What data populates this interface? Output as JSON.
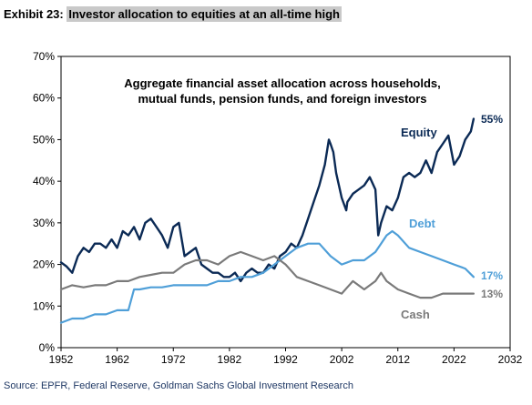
{
  "header": {
    "exhibit_label": "Exhibit 23:",
    "exhibit_title": "Investor allocation to equities at an all-time high"
  },
  "source": "Source: EPFR, Federal Reserve, Goldman Sachs Global Investment Research",
  "chart_data": {
    "type": "line",
    "title": "Aggregate financial asset allocation across households, mutual funds, pension funds, and foreign investors",
    "title_lines": [
      "Aggregate financial asset allocation across households,",
      "mutual funds, pension funds, and foreign investors"
    ],
    "xlim": [
      1952,
      2032
    ],
    "ylim": [
      0,
      70
    ],
    "x_ticks": [
      1952,
      1962,
      1972,
      1982,
      1992,
      2002,
      2012,
      2022,
      2032
    ],
    "y_ticks": [
      0,
      10,
      20,
      30,
      40,
      50,
      60,
      70
    ],
    "y_tick_labels": [
      "0%",
      "10%",
      "20%",
      "30%",
      "40%",
      "50%",
      "60%",
      "70%"
    ],
    "grid": false,
    "colors": {
      "equity": "#0b2a55",
      "debt": "#4f9fd8",
      "cash": "#7a7a7a"
    },
    "series": [
      {
        "name": "Equity",
        "end_label": "55%",
        "x": [
          1952,
          1953,
          1954,
          1955,
          1956,
          1957,
          1958,
          1959,
          1960,
          1961,
          1962,
          1963,
          1964,
          1965,
          1966,
          1967,
          1968,
          1969,
          1970,
          1971,
          1972,
          1973,
          1974,
          1975,
          1976,
          1977,
          1978,
          1979,
          1980,
          1981,
          1982,
          1983,
          1984,
          1985,
          1986,
          1987,
          1988,
          1989,
          1990,
          1991,
          1992,
          1993,
          1994,
          1995,
          1996,
          1997,
          1998,
          1999,
          1999.7,
          2000,
          2000.5,
          2001,
          2002,
          2002.8,
          2003,
          2004,
          2005,
          2006,
          2007,
          2008,
          2008.5,
          2009,
          2010,
          2011,
          2012,
          2013,
          2014,
          2015,
          2016,
          2017,
          2018,
          2019,
          2020,
          2021,
          2022,
          2023,
          2024,
          2025,
          2025.5
        ],
        "values": [
          20.5,
          19.5,
          18,
          22,
          24,
          23,
          25,
          25,
          24,
          26,
          24,
          28,
          27,
          29,
          26,
          30,
          31,
          29,
          27,
          24,
          29,
          30,
          22,
          23,
          24,
          20,
          19,
          18,
          18,
          17,
          17,
          18,
          16,
          18,
          19,
          18,
          18,
          20,
          19,
          22,
          23,
          25,
          24,
          27,
          31,
          35,
          39,
          44,
          50,
          49,
          47,
          42,
          36,
          33,
          35,
          37,
          38,
          39,
          41,
          38,
          27,
          30,
          34,
          33,
          36,
          41,
          42,
          41,
          42,
          45,
          42,
          47,
          49,
          51,
          44,
          46,
          50,
          52,
          55
        ]
      },
      {
        "name": "Debt",
        "end_label": "17%",
        "x": [
          1952,
          1954,
          1956,
          1958,
          1960,
          1962,
          1964,
          1965,
          1966,
          1968,
          1970,
          1972,
          1974,
          1976,
          1978,
          1980,
          1982,
          1984,
          1986,
          1988,
          1990,
          1992,
          1994,
          1996,
          1998,
          2000,
          2002,
          2004,
          2006,
          2008,
          2009,
          2010,
          2011,
          2012,
          2014,
          2016,
          2018,
          2020,
          2022,
          2024,
          2025.5
        ],
        "values": [
          6,
          7,
          7,
          8,
          8,
          9,
          9,
          14,
          14,
          14.5,
          14.5,
          15,
          15,
          15,
          15,
          16,
          16,
          17,
          17,
          18,
          20,
          22,
          24,
          25,
          25,
          22,
          20,
          21,
          21,
          23,
          25,
          27,
          28,
          27,
          24,
          23,
          22,
          21,
          20,
          19,
          17
        ]
      },
      {
        "name": "Cash",
        "end_label": "13%",
        "x": [
          1952,
          1954,
          1956,
          1958,
          1960,
          1962,
          1964,
          1966,
          1968,
          1970,
          1972,
          1974,
          1976,
          1978,
          1980,
          1982,
          1984,
          1986,
          1988,
          1990,
          1992,
          1994,
          1996,
          1998,
          2000,
          2002,
          2004,
          2006,
          2008,
          2009,
          2010,
          2012,
          2014,
          2016,
          2018,
          2020,
          2022,
          2024,
          2025.5
        ],
        "values": [
          14,
          15,
          14.5,
          15,
          15,
          16,
          16,
          17,
          17.5,
          18,
          18,
          20,
          21,
          21,
          20,
          22,
          23,
          22,
          21,
          22,
          20,
          17,
          16,
          15,
          14,
          13,
          16,
          14,
          16,
          18,
          16,
          14,
          13,
          12,
          12,
          13,
          13,
          13,
          13
        ]
      }
    ]
  }
}
